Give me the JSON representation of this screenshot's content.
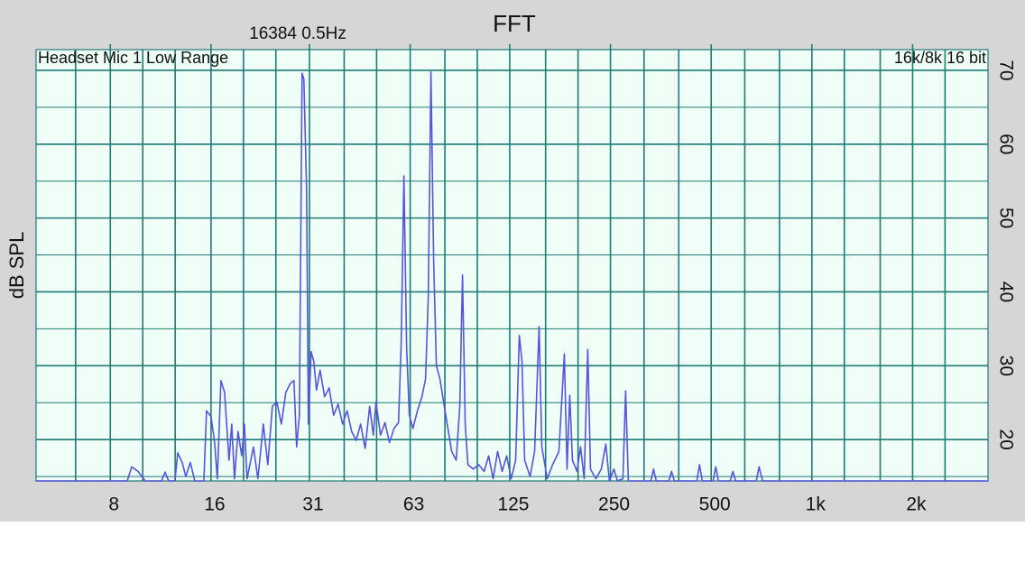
{
  "chart_data": {
    "type": "line",
    "title": "FFT",
    "subtitle": "16384  0.5Hz",
    "annotations": [
      "Headset Mic 1 Low Range",
      "16k/8k 16 bit"
    ],
    "ylabel": "dB SPL",
    "log_x": true,
    "grid": true,
    "xlim": [
      4.8,
      3360
    ],
    "ylim": [
      14.4,
      72.8
    ],
    "xticks": [
      8,
      16,
      {
        "value": 31.5,
        "label": "31"
      },
      63,
      125,
      250,
      500,
      {
        "value": 1000,
        "label": "1k"
      },
      {
        "value": 2000,
        "label": "2k"
      }
    ],
    "x_grid": [
      6.3,
      8,
      10,
      12.5,
      16,
      20,
      25,
      31.5,
      40,
      50,
      63,
      80,
      100,
      125,
      160,
      200,
      250,
      315,
      400,
      500,
      630,
      800,
      1000,
      1250,
      1600,
      2000,
      2500
    ],
    "yticks": [
      20,
      30,
      40,
      50,
      60,
      70
    ],
    "y_grid": [
      15,
      25,
      35,
      45,
      55,
      65
    ],
    "x": [
      4.8,
      8.99,
      9.27,
      9.68,
      10.17,
      11.38,
      11.66,
      11.95,
      12.48,
      12.72,
      13.12,
      13.45,
      13.87,
      14.31,
      15.23,
      15.51,
      16.0,
      16.4,
      16.71,
      17.13,
      17.56,
      18.11,
      18.45,
      18.8,
      19.27,
      19.76,
      20.13,
      20.51,
      21.42,
      22.09,
      22.93,
      23.65,
      24.4,
      25.16,
      25.96,
      26.77,
      27.62,
      28.31,
      28.84,
      29.39,
      29.94,
      30.31,
      30.88,
      31.27,
      31.85,
      32.45,
      33.06,
      33.89,
      34.96,
      36.06,
      37.2,
      38.37,
      39.57,
      40.82,
      42.11,
      43.43,
      44.8,
      46.21,
      47.67,
      48.87,
      49.79,
      51.35,
      52.97,
      54.64,
      56.36,
      58.14,
      59.23,
      60.34,
      61.47,
      62.63,
      64.2,
      66.22,
      68.31,
      70.02,
      71.34,
      72.68,
      74.05,
      75.44,
      77.33,
      79.28,
      81.27,
      83.82,
      86.46,
      88.64,
      90.31,
      92.0,
      93.73,
      97.28,
      100.97,
      104.8,
      108.1,
      111.5,
      115.02,
      118.64,
      122.38,
      126.23,
      130.21,
      133.48,
      135.98,
      138.53,
      143.8,
      148.32,
      152.99,
      155.87,
      161.77,
      167.9,
      175.35,
      182.01,
      185.43,
      188.91,
      192.46,
      198.52,
      203.5,
      208.61,
      213.85,
      217.87,
      226.15,
      234.72,
      242.11,
      248.19,
      256.0,
      262.43,
      272.38,
      277.49,
      282.73,
      330.14,
      336.34,
      342.65,
      373.76,
      380.78,
      387.92,
      452.99,
      461.49,
      470.16,
      506.47,
      515.98,
      525.67,
      569.85,
      580.55,
      591.45,
      682.1,
      694.91,
      712.43,
      3360
    ],
    "series": [
      {
        "color": "#5454dc",
        "values": [
          14.4,
          14.4,
          16.3,
          15.7,
          14.4,
          14.4,
          15.6,
          14.4,
          14.4,
          18.2,
          16.9,
          15.0,
          16.9,
          14.4,
          14.4,
          23.9,
          23.1,
          19.6,
          14.7,
          28.0,
          26.4,
          17.2,
          22.1,
          14.7,
          21.1,
          17.8,
          22.1,
          14.7,
          19.0,
          14.7,
          22.1,
          16.6,
          24.5,
          25.1,
          22.1,
          26.4,
          27.6,
          28.0,
          19.0,
          23.3,
          69.6,
          68.8,
          53.9,
          22.1,
          31.9,
          30.6,
          26.7,
          29.4,
          25.8,
          27.0,
          23.3,
          24.8,
          22.1,
          23.9,
          21.1,
          19.9,
          22.1,
          18.8,
          24.5,
          20.6,
          25.1,
          20.6,
          22.3,
          19.6,
          21.5,
          22.3,
          33.1,
          55.7,
          32.5,
          23.3,
          21.5,
          23.9,
          25.8,
          28.2,
          39.2,
          69.8,
          44.1,
          30.0,
          28.2,
          25.1,
          22.1,
          18.4,
          17.2,
          24.5,
          42.3,
          22.1,
          16.6,
          16.0,
          16.6,
          15.7,
          17.8,
          14.7,
          18.4,
          15.7,
          17.8,
          14.7,
          17.2,
          34.1,
          30.6,
          17.2,
          15.0,
          18.4,
          35.3,
          19.0,
          14.7,
          16.6,
          18.4,
          31.6,
          16.0,
          26.0,
          17.2,
          15.7,
          19.0,
          14.7,
          32.2,
          16.0,
          14.7,
          16.0,
          19.4,
          14.4,
          16.0,
          14.4,
          14.7,
          26.6,
          14.4,
          14.4,
          16.0,
          14.4,
          14.4,
          15.7,
          14.4,
          14.4,
          16.6,
          14.4,
          14.4,
          16.3,
          14.4,
          14.4,
          15.7,
          14.4,
          14.4,
          16.3,
          14.4,
          14.4
        ]
      }
    ]
  }
}
